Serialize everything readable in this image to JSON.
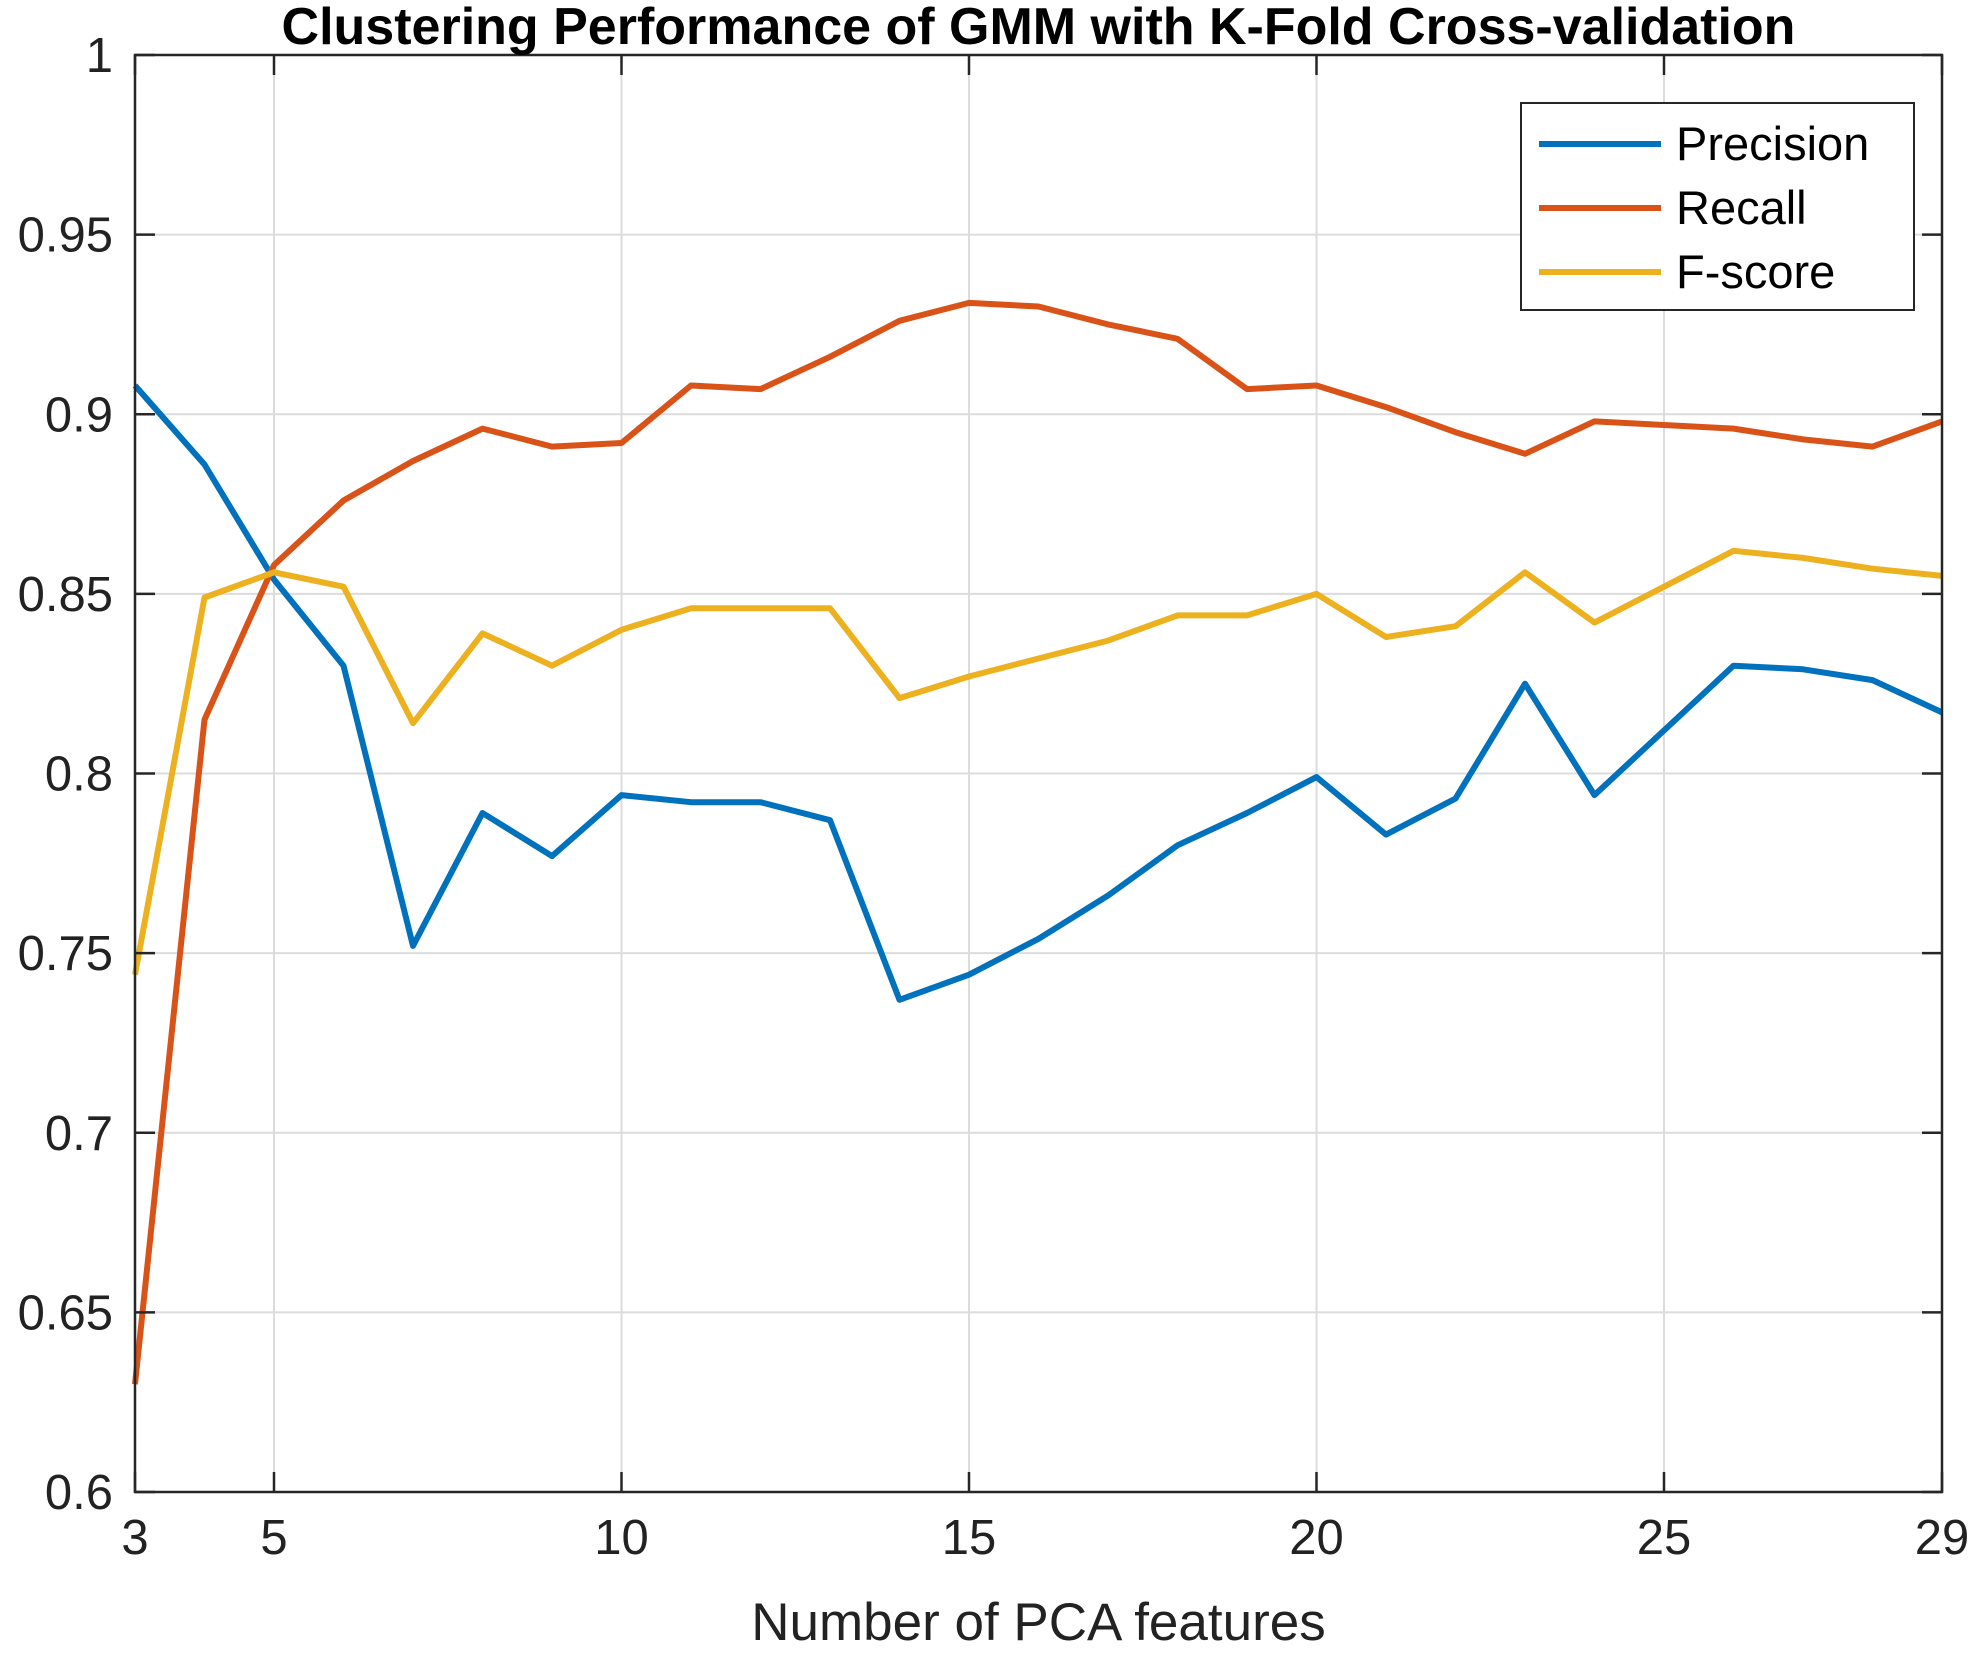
{
  "chart_data": {
    "type": "line",
    "title": "Clustering Performance of GMM with K-Fold Cross-validation",
    "xlabel": "Number of PCA features",
    "ylabel": "",
    "xlim": [
      3,
      29
    ],
    "ylim": [
      0.6,
      1
    ],
    "xticks": [
      3,
      5,
      10,
      15,
      20,
      25,
      29
    ],
    "xtick_labels": [
      "3",
      "5",
      "10",
      "15",
      "20",
      "25",
      "29"
    ],
    "yticks": [
      0.6,
      0.65,
      0.7,
      0.75,
      0.8,
      0.85,
      0.9,
      0.95,
      1
    ],
    "ytick_labels": [
      "0.6",
      "0.65",
      "0.7",
      "0.75",
      "0.8",
      "0.85",
      "0.9",
      "0.95",
      "1"
    ],
    "grid": true,
    "legend_position": "top-right",
    "x": [
      3,
      4,
      5,
      6,
      7,
      8,
      9,
      10,
      11,
      12,
      13,
      14,
      15,
      16,
      17,
      18,
      19,
      20,
      21,
      22,
      23,
      24,
      25,
      26,
      27,
      28,
      29
    ],
    "series": [
      {
        "name": "Precision",
        "color": "#0072BD",
        "values": [
          0.908,
          0.886,
          0.854,
          0.83,
          0.752,
          0.789,
          0.777,
          0.794,
          0.792,
          0.792,
          0.787,
          0.737,
          0.744,
          0.754,
          0.766,
          0.78,
          0.789,
          0.799,
          0.783,
          0.793,
          0.825,
          0.794,
          0.812,
          0.83,
          0.829,
          0.826,
          0.817
        ]
      },
      {
        "name": "Recall",
        "color": "#D95319",
        "values": [
          0.63,
          0.815,
          0.858,
          0.876,
          0.887,
          0.896,
          0.891,
          0.892,
          0.908,
          0.907,
          0.916,
          0.926,
          0.931,
          0.93,
          0.925,
          0.921,
          0.907,
          0.908,
          0.902,
          0.895,
          0.889,
          0.898,
          0.897,
          0.896,
          0.893,
          0.891,
          0.898
        ]
      },
      {
        "name": "F-score",
        "color": "#EDB120",
        "values": [
          0.744,
          0.849,
          0.856,
          0.852,
          0.814,
          0.839,
          0.83,
          0.84,
          0.846,
          0.846,
          0.846,
          0.821,
          0.827,
          0.832,
          0.837,
          0.844,
          0.844,
          0.85,
          0.838,
          0.841,
          0.856,
          0.842,
          0.852,
          0.862,
          0.86,
          0.857,
          0.855
        ]
      }
    ]
  }
}
